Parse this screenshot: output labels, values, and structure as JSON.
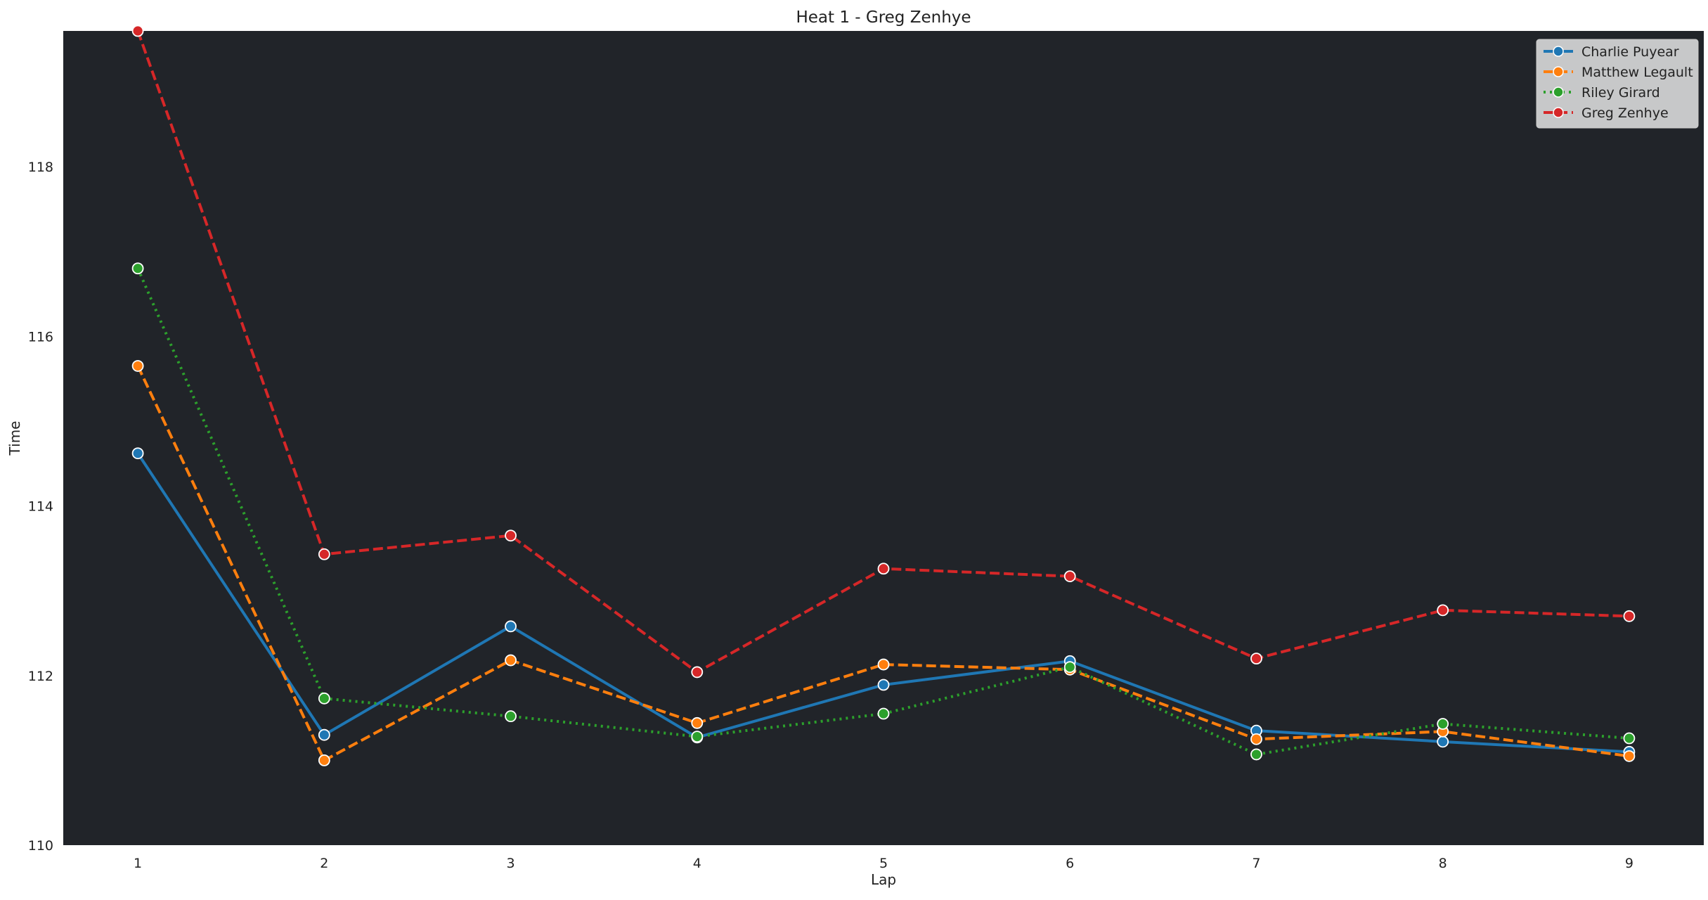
{
  "chart_data": {
    "type": "line",
    "title": "Heat 1 - Greg Zenhye",
    "xlabel": "Lap",
    "ylabel": "Time",
    "x": [
      1,
      2,
      3,
      4,
      5,
      6,
      7,
      8,
      9
    ],
    "xlim": [
      0.6,
      9.4
    ],
    "ylim": [
      110,
      119.6
    ],
    "yticks": [
      110,
      112,
      114,
      116,
      118
    ],
    "grid": false,
    "legend_position": "top-right",
    "plot_background": "#212429",
    "series": [
      {
        "name": "Charlie Puyear",
        "color": "#1f77b4",
        "dash": "solid",
        "values": [
          114.62,
          111.3,
          112.58,
          111.27,
          111.89,
          112.17,
          111.35,
          111.22,
          111.1
        ]
      },
      {
        "name": "Matthew Legault",
        "color": "#ff7f0e",
        "dash": "dashed",
        "values": [
          115.65,
          111.0,
          112.18,
          111.44,
          112.13,
          112.07,
          111.25,
          111.34,
          111.05
        ]
      },
      {
        "name": "Riley Girard",
        "color": "#2ca02c",
        "dash": "dotted",
        "values": [
          116.8,
          111.73,
          111.52,
          111.28,
          111.55,
          112.1,
          111.07,
          111.43,
          111.26
        ]
      },
      {
        "name": "Greg Zenhye",
        "color": "#d62728",
        "dash": "dashed",
        "values": [
          119.6,
          113.43,
          113.65,
          112.04,
          113.26,
          113.17,
          112.2,
          112.77,
          112.7
        ]
      }
    ]
  }
}
